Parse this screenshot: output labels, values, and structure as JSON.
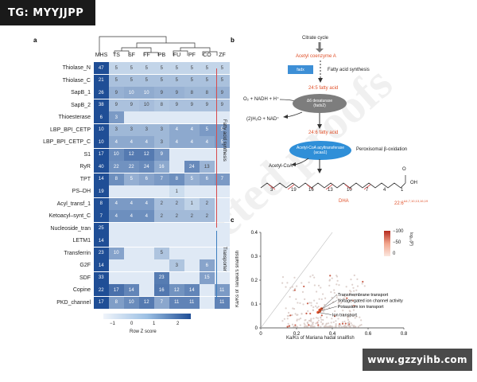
{
  "watermarks": {
    "top_left": "TG: MYYJJPP",
    "bottom_right": "www.gzzyihb.com"
  },
  "panel_a": {
    "label": "a",
    "columns": [
      "MHS",
      "TS",
      "SF",
      "FF",
      "PB",
      "FU",
      "PF",
      "CO",
      "ZF"
    ],
    "rows": [
      {
        "name": "Thiolase_N",
        "values": [
          "47",
          "5",
          "5",
          "5",
          "5",
          "5",
          "5",
          "5",
          "5"
        ]
      },
      {
        "name": "Thiolase_C",
        "values": [
          "21",
          "5",
          "5",
          "5",
          "5",
          "5",
          "5",
          "5",
          "5"
        ]
      },
      {
        "name": "SapB_1",
        "values": [
          "26",
          "9",
          "10",
          "10",
          "9",
          "9",
          "8",
          "8",
          "9"
        ]
      },
      {
        "name": "SapB_2",
        "values": [
          "38",
          "9",
          "9",
          "10",
          "8",
          "9",
          "9",
          "9",
          "9"
        ]
      },
      {
        "name": "Thioesterase",
        "values": [
          "6",
          "3",
          "",
          "",
          "",
          "",
          "",
          "",
          ""
        ]
      },
      {
        "name": "LBP_BPI_CETP",
        "values": [
          "10",
          "3",
          "3",
          "3",
          "3",
          "4",
          "4",
          "5",
          "5"
        ]
      },
      {
        "name": "LBP_BPI_CETP_C",
        "values": [
          "10",
          "4",
          "4",
          "4",
          "3",
          "4",
          "4",
          "4",
          "5"
        ]
      },
      {
        "name": "S1",
        "values": [
          "17",
          "10",
          "12",
          "12",
          "9",
          "",
          "",
          "",
          ""
        ]
      },
      {
        "name": "RyR",
        "values": [
          "40",
          "22",
          "22",
          "24",
          "16",
          "",
          "24",
          "13",
          ""
        ]
      },
      {
        "name": "TPT",
        "values": [
          "14",
          "8",
          "5",
          "6",
          "7",
          "8",
          "5",
          "6",
          "7"
        ]
      },
      {
        "name": "PS–DH",
        "values": [
          "19",
          "",
          "",
          "",
          "",
          "1",
          "",
          "",
          ""
        ]
      },
      {
        "name": "Acyl_transf_1",
        "values": [
          "8",
          "4",
          "4",
          "4",
          "2",
          "2",
          "1",
          "2",
          ""
        ]
      },
      {
        "name": "Ketoacyl–synt_C",
        "values": [
          "7",
          "4",
          "4",
          "4",
          "2",
          "2",
          "2",
          "2",
          ""
        ]
      },
      {
        "name": "Nucleoside_tran",
        "values": [
          "25",
          "",
          "",
          "",
          "",
          "",
          "",
          "",
          ""
        ]
      },
      {
        "name": "LETM1",
        "values": [
          "14",
          "",
          "",
          "",
          "",
          "",
          "",
          "",
          ""
        ]
      },
      {
        "name": "Transferrin",
        "values": [
          "23",
          "10",
          "",
          "",
          "5",
          "",
          "",
          "",
          ""
        ]
      },
      {
        "name": "G2F",
        "values": [
          "14",
          "",
          "",
          "",
          "",
          "3",
          "",
          "6",
          ""
        ]
      },
      {
        "name": "SDF",
        "values": [
          "33",
          "",
          "",
          "",
          "23",
          "",
          "",
          "15",
          ""
        ]
      },
      {
        "name": "Copine",
        "values": [
          "22",
          "17",
          "14",
          "",
          "16",
          "12",
          "14",
          "",
          "11"
        ]
      },
      {
        "name": "PKD_channel",
        "values": [
          "17",
          "8",
          "10",
          "12",
          "7",
          "11",
          "11",
          "",
          "11"
        ]
      }
    ],
    "group_labels": [
      "Fatty acid synthesis",
      "Transporter"
    ],
    "colorbar": {
      "ticks": [
        "−1",
        "0",
        "1",
        "2"
      ],
      "title": "Row Z score"
    }
  },
  "panel_b": {
    "label": "b",
    "citrate_cycle": "Citrate cycle",
    "acetyl_coa_a": "Acetyl coenzyme A",
    "fads_box": "fadx",
    "fatty_acid_synthesis": "Fatty acid synthesis",
    "fatty_acid_1": "24:5 fatty acid",
    "cofactor_in": "O₂ + NADH + H⁺",
    "desaturase": "Δ6 desaturase",
    "desaturase_gene": "(fads2)",
    "cofactor_out": "(2)H₂O + NAD⁺",
    "fatty_acid_2": "24:6 fatty acid",
    "acyltransferase": "Acetyl-CoA acyltransferase",
    "acyltransferase_gene": "(acaa1)",
    "peroxisomal": "Peroxisomal β-oxidation",
    "acetyl_coa_out": "Acetyl-CoA",
    "oh_label": "OH",
    "o_label": "O",
    "chain_numbers": [
      "3",
      "19",
      "16",
      "13",
      "10",
      "7",
      "4",
      "1"
    ],
    "dha": "DHA",
    "dha_formula": "22:6",
    "dha_superscript": "Δ4,7,10,13,16,19"
  },
  "panel_c": {
    "label": "c",
    "x_axis_label": "Ka/Ks of Mariana hadal snailfish",
    "y_axis_label": "Ka/Ks of Tanaka's snailfish",
    "x_ticks": [
      "0",
      "0.2",
      "0.4",
      "0.6",
      "0.8"
    ],
    "y_ticks": [
      "0",
      "0.1",
      "0.2",
      "0.3",
      "0.4"
    ],
    "legend_ticks": [
      "−100",
      "−50",
      "0"
    ],
    "legend_title": "log₁₀(P)",
    "annotations": [
      "Transmembrane transport",
      "Voltage-gated ion channel activity",
      "Potassium ion transport",
      "Ion transport"
    ],
    "chart_data": {
      "type": "scatter",
      "xlabel": "Ka/Ks of Mariana hadal snailfish",
      "ylabel": "Ka/Ks of Tanaka's snailfish",
      "xlim": [
        0,
        0.8
      ],
      "ylim": [
        0,
        0.4
      ],
      "highlighted": [
        {
          "label": "Transmembrane transport",
          "x": 0.34,
          "y": 0.08
        },
        {
          "label": "Voltage-gated ion channel activity",
          "x": 0.33,
          "y": 0.075
        },
        {
          "label": "Potassium ion transport",
          "x": 0.33,
          "y": 0.07
        },
        {
          "label": "Ion transport",
          "x": 0.32,
          "y": 0.065
        }
      ]
    }
  },
  "colors": {
    "heat_max": "#1f4e96",
    "heat_min": "#f0f4fa",
    "red_line": "#d84b4b",
    "blue_line": "#3d7fbf",
    "orange": "#e0512a"
  }
}
